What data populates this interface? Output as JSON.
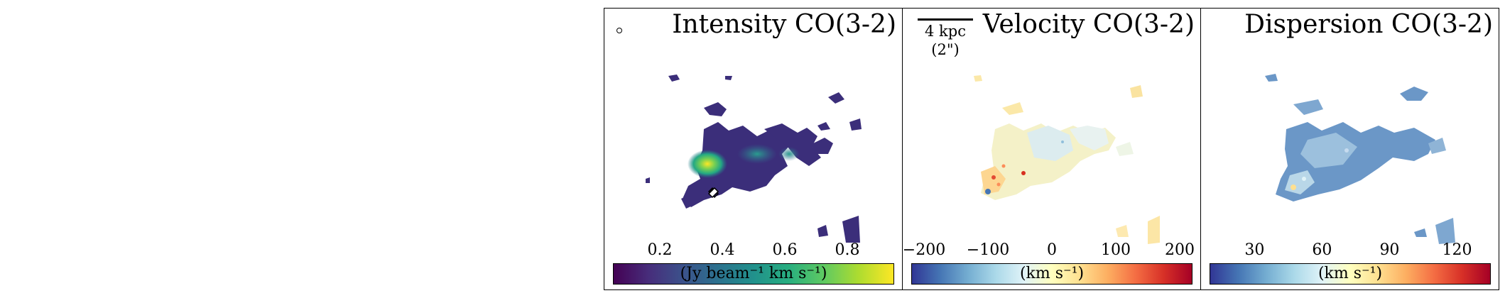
{
  "chart_data": [
    {
      "type": "heatmap",
      "title": "Intensity CO(3-2)",
      "colormap": "viridis",
      "colorbar_label": "(Jy beam⁻¹ km s⁻¹)",
      "colorbar_range": [
        0.05,
        0.95
      ],
      "colorbar_ticks": [
        "0.2",
        "0.4",
        "0.6",
        "0.8"
      ],
      "colorbar_tick_values": [
        0.2,
        0.4,
        0.6,
        0.8
      ],
      "annotations": [
        "beam ellipse",
        "nucleus cross marker"
      ]
    },
    {
      "type": "heatmap",
      "title": "Velocity CO(3-2)",
      "colormap": "RdYlBu_r",
      "colorbar_label": "(km s⁻¹)",
      "colorbar_range": [
        -220,
        220
      ],
      "colorbar_ticks": [
        "−200",
        "−100",
        "0",
        "100",
        "200"
      ],
      "colorbar_tick_values": [
        -200,
        -100,
        0,
        100,
        200
      ],
      "scalebar": {
        "label": "4 kpc",
        "sublabel": "(2\")"
      }
    },
    {
      "type": "heatmap",
      "title": "Dispersion CO(3-2)",
      "colormap": "RdYlBu_r",
      "colorbar_label": "(km s⁻¹)",
      "colorbar_range": [
        10,
        135
      ],
      "colorbar_ticks": [
        "30",
        "60",
        "90",
        "120"
      ],
      "colorbar_tick_values": [
        30,
        60,
        90,
        120
      ]
    }
  ]
}
